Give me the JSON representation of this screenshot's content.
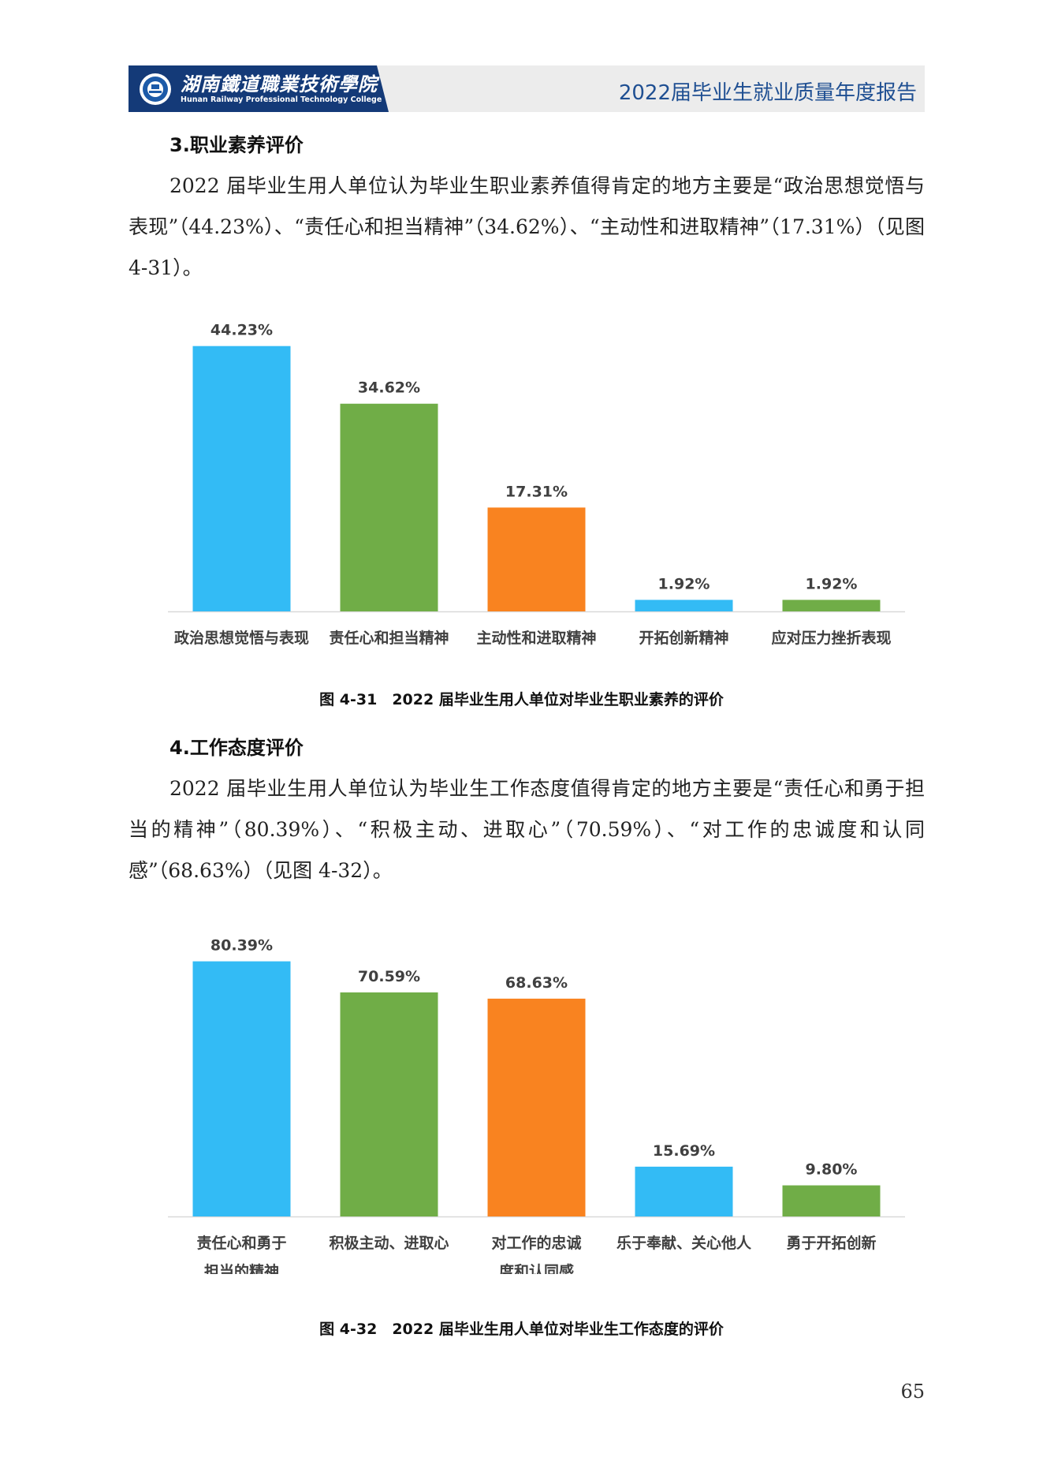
{
  "header": {
    "college_name_cn": "湖南鐵道職業技術學院",
    "college_name_en": "Hunan Railway Professional Technology College",
    "report_title": "2022届毕业生就业质量年度报告"
  },
  "section3": {
    "heading": "3.职业素养评价",
    "paragraph": "2022 届毕业生用人单位认为毕业生职业素养值得肯定的地方主要是“政治思想觉悟与表现”（44.23%）、“责任心和担当精神”（34.62%）、“主动性和进取精神”（17.31%）（见图 4-31）。"
  },
  "figure31": {
    "caption": "图 4-31　2022 届毕业生用人单位对毕业生职业素养的评价"
  },
  "section4": {
    "heading": "4.工作态度评价",
    "paragraph": "2022 届毕业生用人单位认为毕业生工作态度值得肯定的地方主要是“责任心和勇于担当的精神”（80.39%）、“积极主动、进取心”（70.59%）、“对工作的忠诚度和认同感”（68.63%）（见图 4-32）。"
  },
  "figure32": {
    "caption": "图 4-32　2022 届毕业生用人单位对毕业生工作态度的评价"
  },
  "page_number": "65",
  "colors": {
    "blue": "#33bbf5",
    "green": "#70ad47",
    "orange": "#f98320",
    "header_text": "#1f4f92"
  },
  "chart_data": [
    {
      "type": "bar",
      "categories": [
        "政治思想觉悟与表现",
        "责任心和担当精神",
        "主动性和进取精神",
        "开拓创新精神",
        "应对压力挫折表现"
      ],
      "values": [
        44.23,
        34.62,
        17.31,
        1.92,
        1.92
      ],
      "data_labels": [
        "44.23%",
        "34.62%",
        "17.31%",
        "1.92%",
        "1.92%"
      ],
      "colors": [
        "#33bbf5",
        "#70ad47",
        "#f98320",
        "#33bbf5",
        "#70ad47"
      ],
      "ylim": [
        0,
        48
      ],
      "grid": false,
      "legend": "none"
    },
    {
      "type": "bar",
      "categories": [
        "责任心和勇于担当的精神",
        "积极主动、进取心",
        "对工作的忠诚度和认同感",
        "乐于奉献、关心他人",
        "勇于开拓创新"
      ],
      "category_lines": [
        [
          "责任心和勇于",
          "担当的精神"
        ],
        [
          "积极主动、进取心"
        ],
        [
          "对工作的忠诚",
          "度和认同感"
        ],
        [
          "乐于奉献、关心他人"
        ],
        [
          "勇于开拓创新"
        ]
      ],
      "values": [
        80.39,
        70.59,
        68.63,
        15.69,
        9.8
      ],
      "data_labels": [
        "80.39%",
        "70.59%",
        "68.63%",
        "15.69%",
        "9.80%"
      ],
      "colors": [
        "#33bbf5",
        "#70ad47",
        "#f98320",
        "#33bbf5",
        "#70ad47"
      ],
      "ylim": [
        0,
        87
      ],
      "grid": false,
      "legend": "none"
    }
  ]
}
